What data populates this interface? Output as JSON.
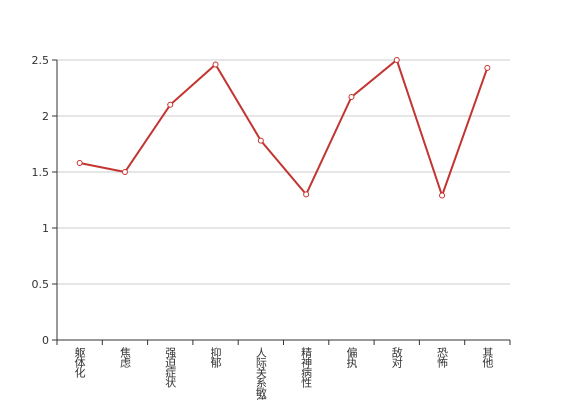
{
  "chart_data": {
    "type": "line",
    "categories": [
      "躯体化",
      "焦虑",
      "强迫症状",
      "抑郁",
      "人际关系敏感",
      "精神病性",
      "偏执",
      "敌对",
      "恐怖",
      "其他"
    ],
    "values": [
      1.58,
      1.5,
      2.1,
      2.46,
      1.78,
      1.3,
      2.17,
      2.5,
      1.29,
      2.43
    ],
    "color": "#c23531",
    "ylim": [
      0,
      2.5
    ],
    "yticks": [
      0,
      0.5,
      1,
      1.5,
      2,
      2.5
    ],
    "grid": true
  }
}
